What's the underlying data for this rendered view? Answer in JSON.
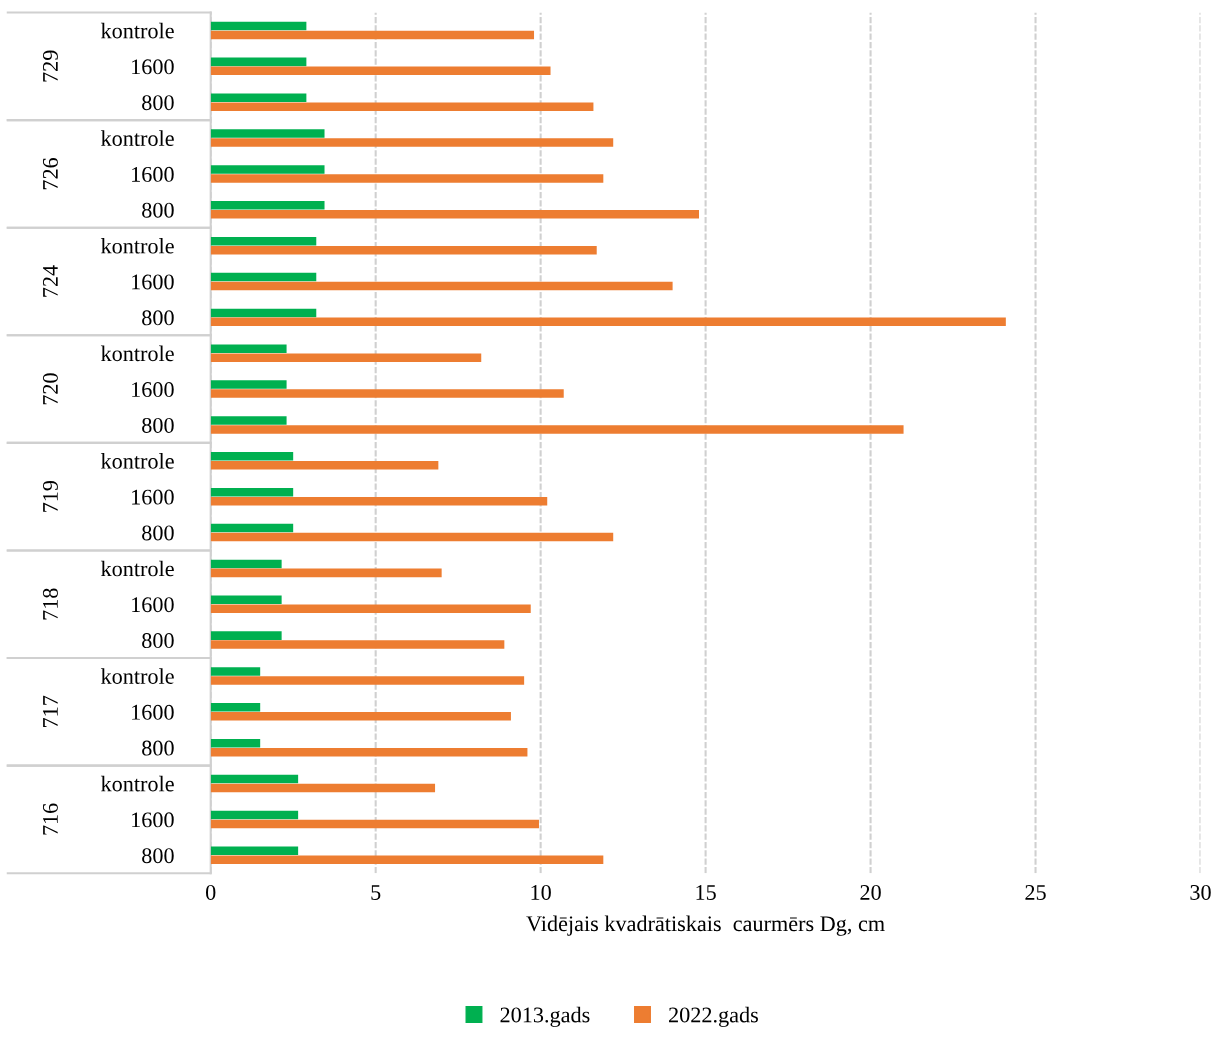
{
  "chart_data": {
    "type": "bar",
    "orientation": "horizontal",
    "xlabel": "Vidējais kvadrātiskais  caurmērs Dg, cm",
    "categories": [
      "kontrole",
      "1600",
      "800",
      "kontrole",
      "1600",
      "800",
      "kontrole",
      "1600",
      "800",
      "kontrole",
      "1600",
      "800",
      "kontrole",
      "1600",
      "800",
      "kontrole",
      "1600",
      "800",
      "kontrole",
      "1600",
      "800",
      "kontrole",
      "1600",
      "800"
    ],
    "annotations": [
      "729",
      "726",
      "724",
      "720",
      "719",
      "718",
      "717",
      "716"
    ],
    "series": [
      {
        "name": "2013.gads",
        "color": "#00b050",
        "values": [
          2.9,
          2.9,
          2.9,
          3.45,
          3.45,
          3.45,
          3.2,
          3.2,
          3.2,
          2.3,
          2.3,
          2.3,
          2.5,
          2.5,
          2.5,
          2.15,
          2.15,
          2.15,
          1.5,
          1.5,
          1.5,
          2.65,
          2.65,
          2.65
        ]
      },
      {
        "name": "2022.gads",
        "color": "#ed7d31",
        "values": [
          9.8,
          10.3,
          11.6,
          12.2,
          11.9,
          14.8,
          11.7,
          14.0,
          24.1,
          8.2,
          10.7,
          21.0,
          6.9,
          10.2,
          12.2,
          7.0,
          9.7,
          8.9,
          9.5,
          9.1,
          9.6,
          6.8,
          9.95,
          11.9
        ]
      }
    ],
    "xlim": [
      0,
      30
    ],
    "xticks": [
      0,
      5,
      10,
      15,
      20,
      25,
      30
    ],
    "grid": "x",
    "legend": "bottom"
  }
}
